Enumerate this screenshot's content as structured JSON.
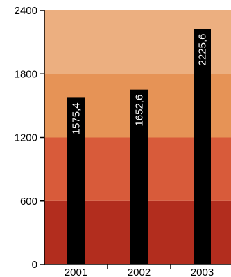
{
  "chart_data": {
    "type": "bar",
    "title": "",
    "xlabel": "",
    "ylabel": "",
    "categories": [
      "2001",
      "2002",
      "2003"
    ],
    "values": [
      1575.4,
      1652.6,
      2225.6
    ],
    "data_labels": [
      "1575,4",
      "1652,6",
      "2225,6"
    ],
    "ylim": [
      0,
      2400
    ],
    "yticks": [
      0,
      600,
      1200,
      1800,
      2400
    ],
    "ytick_labels": [
      "0",
      "600",
      "1200",
      "1800",
      "2400"
    ],
    "grid": false,
    "legend": "none",
    "bar_color": "#000000",
    "background_bands": [
      {
        "from": 0,
        "to": 600,
        "color": "#b22d1e"
      },
      {
        "from": 600,
        "to": 1200,
        "color": "#d85b3a"
      },
      {
        "from": 1200,
        "to": 1800,
        "color": "#e69356"
      },
      {
        "from": 1800,
        "to": 2400,
        "color": "#ecaf80"
      }
    ]
  }
}
